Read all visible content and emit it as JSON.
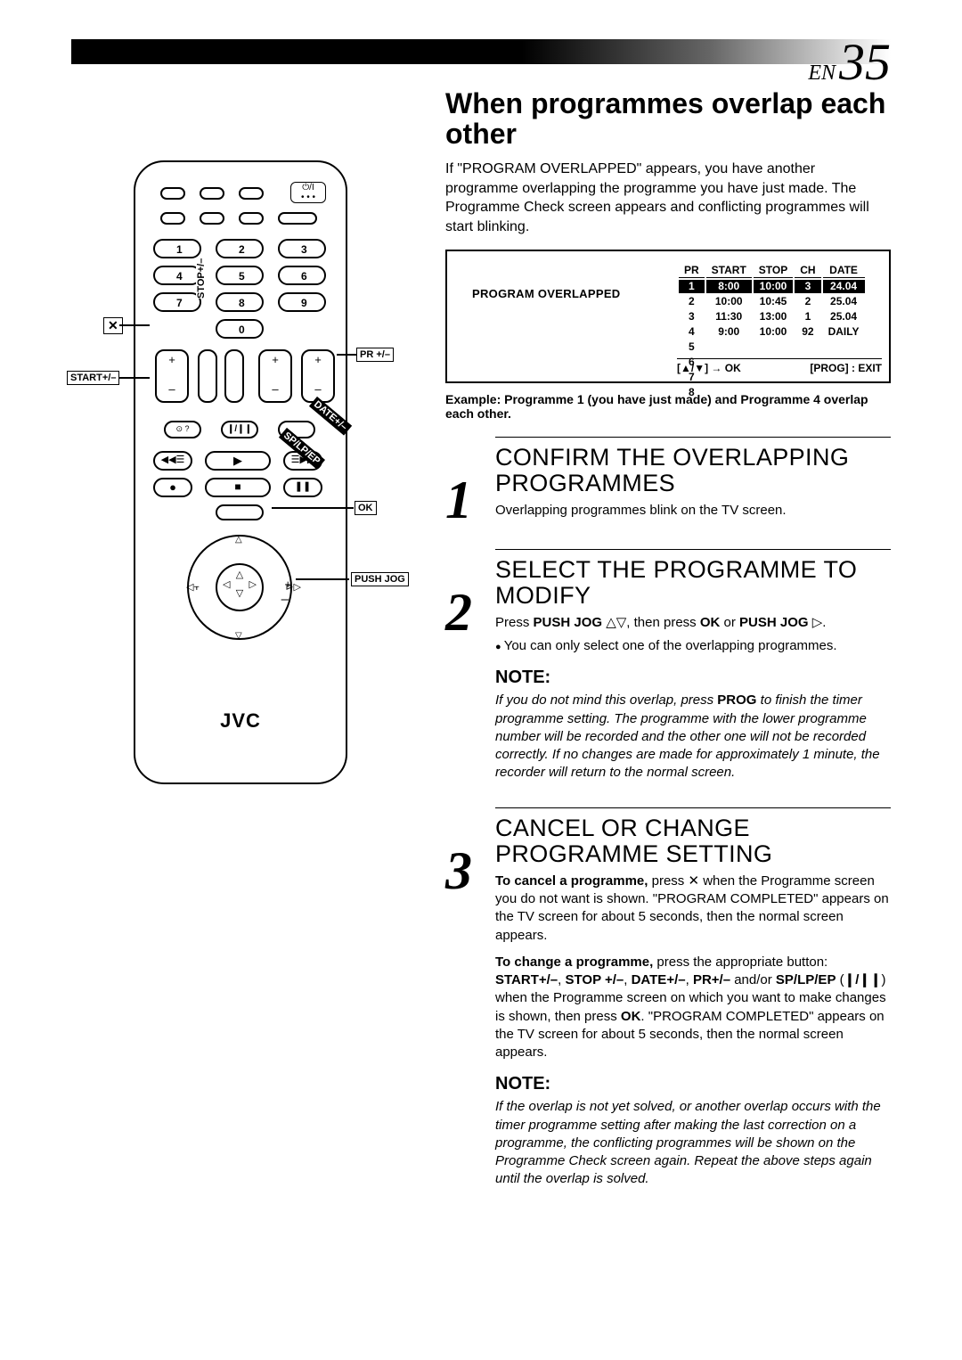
{
  "pagePrefix": "EN",
  "pageNumber": "35",
  "sectionTitle": "When programmes overlap each other",
  "intro": "If \"PROGRAM OVERLAPPED\" appears, you have another programme overlapping the programme you have just made. The Programme Check screen appears and conflicting programmes will start blinking.",
  "osd": {
    "leftLabel": "PROGRAM OVERLAPPED",
    "headers": [
      "PR",
      "START",
      "STOP",
      "CH",
      "DATE"
    ],
    "rows": [
      {
        "pr": "1",
        "start": "8:00",
        "stop": "10:00",
        "ch": "3",
        "date": "24.04",
        "hl": true
      },
      {
        "pr": "2",
        "start": "10:00",
        "stop": "10:45",
        "ch": "2",
        "date": "25.04"
      },
      {
        "pr": "3",
        "start": "11:30",
        "stop": "13:00",
        "ch": "1",
        "date": "25.04"
      },
      {
        "pr": "4",
        "start": "9:00",
        "stop": "10:00",
        "ch": "92",
        "date": "DAILY"
      },
      {
        "pr": "5"
      },
      {
        "pr": "6"
      },
      {
        "pr": "7"
      },
      {
        "pr": "8"
      }
    ],
    "footLeft": "[▲/▼] → OK",
    "footRight": "[PROG] : EXIT"
  },
  "exampleLine": "Example: Programme 1 (you have just made) and Programme 4 overlap each other.",
  "steps": [
    {
      "num": "1",
      "title": "CONFIRM THE OVERLAPPING PROGRAMMES",
      "body": "Overlapping programmes blink on the TV screen."
    },
    {
      "num": "2",
      "title": "SELECT THE PROGRAMME TO MODIFY",
      "bodyHtml": "Press <b>PUSH JOG</b> △▽, then press <b>OK</b> or <b>PUSH JOG</b> ▷.",
      "bullet": "You can only select one of the overlapping programmes.",
      "note": "If you do not mind this overlap, press <b style='font-style:normal'>PROG</b> to finish the timer programme setting. The programme with the lower programme number will be recorded and the other one will not be recorded correctly. If no changes are made for approximately 1 minute, the recorder will return to the normal screen."
    },
    {
      "num": "3",
      "title": "CANCEL OR CHANGE PROGRAMME SETTING",
      "bodyHtml": "<b>To cancel a programme,</b> press ✕ when the Programme screen you do not want is shown. \"PROGRAM COMPLETED\" appears on the TV screen for about 5 seconds, then the normal screen appears.",
      "body2Html": "<b>To change a programme,</b> press the appropriate button: <b>START+/–</b>, <b>STOP +/–</b>, <b>DATE+/–</b>, <b>PR+/–</b> and/or <b>SP/LP/EP</b> (<b>❙/❙❙</b>) when the Programme screen on which you want to make changes is shown, then press <b>OK</b>. \"PROGRAM COMPLETED\" appears on the TV screen for about 5 seconds, then the normal screen appears.",
      "note": "If the overlap is not yet solved, or another overlap occurs with the timer programme setting after making the last correction on a programme, the conflicting programmes will be shown on the Programme Check screen again. Repeat the above steps again until the overlap is solved."
    }
  ],
  "noteLabel": "NOTE:",
  "remote": {
    "brand": "JVC",
    "labels": {
      "startPM": "START+/–",
      "stopPM": "STOP+/–",
      "prPM": "PR +/–",
      "ok": "OK",
      "pushJog": "PUSH JOG",
      "datePM": "DATE+/–",
      "splpep": "SP/LP/EP",
      "xIcon": "✕"
    }
  }
}
